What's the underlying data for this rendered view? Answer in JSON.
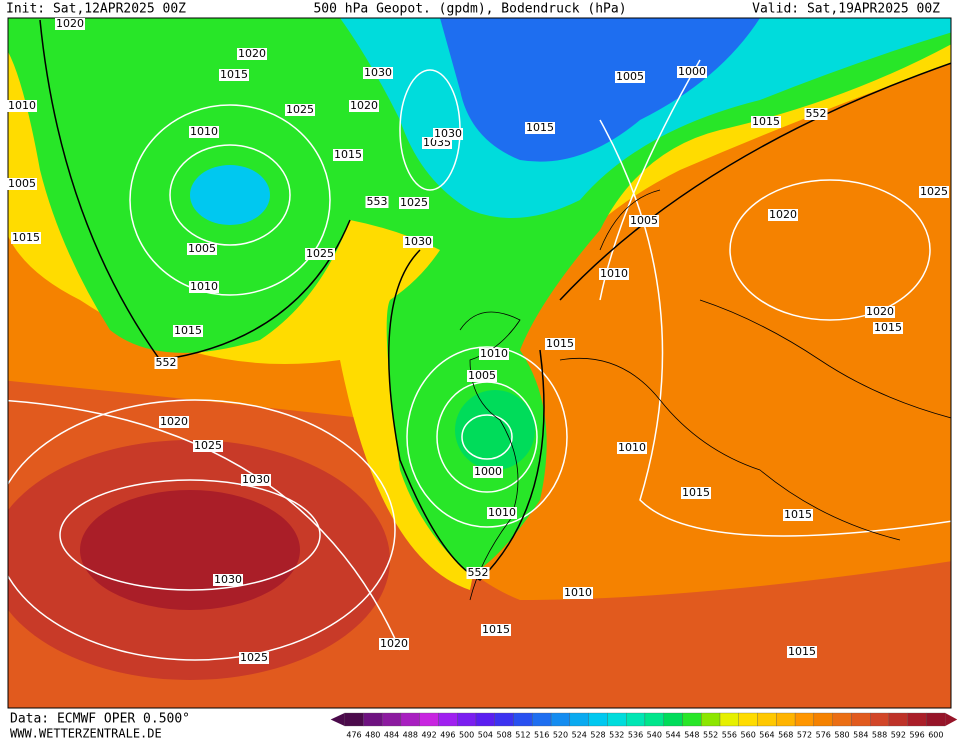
{
  "header": {
    "init": "Init: Sat,12APR2025 00Z",
    "title": "500 hPa Geopot. (gpdm), Bodendruck (hPa)",
    "valid": "Valid: Sat,19APR2025 00Z"
  },
  "footer": {
    "data": "Data: ECMWF OPER 0.500°",
    "site": "WWW.WETTERZENTRALE.DE"
  },
  "colorbar": {
    "labels": [
      476,
      480,
      484,
      488,
      492,
      496,
      500,
      504,
      508,
      512,
      516,
      520,
      524,
      528,
      532,
      536,
      540,
      544,
      548,
      552,
      556,
      560,
      564,
      568,
      572,
      576,
      580,
      584,
      588,
      592,
      596,
      600
    ],
    "colors": [
      "#4b0a4b",
      "#6e1280",
      "#8c1aa0",
      "#a81fc0",
      "#c825e0",
      "#a020f0",
      "#7a1ef0",
      "#5a1ef0",
      "#3c32f0",
      "#2850f0",
      "#1e6ef0",
      "#148cf0",
      "#0aaaf0",
      "#00c8f0",
      "#00dcdc",
      "#00e6b4",
      "#00e68c",
      "#00dc5a",
      "#28e628",
      "#8ce600",
      "#e6f000",
      "#ffdc00",
      "#ffc800",
      "#ffb400",
      "#ff9600",
      "#f58200",
      "#eb6e14",
      "#e15a1e",
      "#d24628",
      "#be3228",
      "#aa1e28",
      "#961428"
    ]
  },
  "isobar_labels": [
    1020,
    1020,
    1015,
    1030,
    1010,
    1025,
    1020,
    1010,
    1035,
    1030,
    1015,
    1005,
    1000,
    1015,
    1015,
    1005,
    1025,
    1005,
    1025,
    1015,
    1030,
    1005,
    1020,
    1025,
    1010,
    1010,
    1015,
    1015,
    1010,
    1005,
    1020,
    1015,
    1000,
    1010,
    1020,
    1025,
    1030,
    1015,
    1015,
    1010,
    1030,
    1010,
    1015,
    1020,
    1025,
    1015
  ],
  "geopotential_labels": [
    552,
    552,
    553,
    552
  ]
}
